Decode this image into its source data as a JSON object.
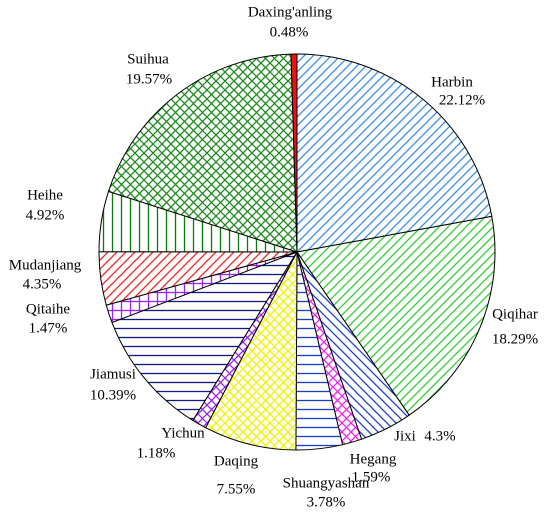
{
  "chart_data": {
    "type": "pie",
    "categories": [
      "Harbin",
      "Qiqihar",
      "Jixi",
      "Hegang",
      "Shuangyashan",
      "Daqing",
      "Yichun",
      "Jiamusi",
      "Qitaihe",
      "Mudanjiang",
      "Heihe",
      "Suihua",
      "Daxing'anling"
    ],
    "values": [
      22.12,
      18.29,
      4.3,
      1.59,
      3.78,
      7.55,
      1.18,
      10.39,
      1.47,
      4.35,
      4.92,
      19.57,
      0.48
    ],
    "value_labels": [
      "22.12%",
      "18.29%",
      "4.3%",
      "1.59%",
      "3.78%",
      "7.55%",
      "1.18%",
      "10.39%",
      "1.47%",
      "4.35%",
      "4.92%",
      "19.57%",
      "0.48%"
    ],
    "colors": [
      "#3a8ee6",
      "#33cc33",
      "#1a3fcc",
      "#ee22ee",
      "#1a3fcc",
      "#f2f200",
      "#9922ee",
      "#101a80",
      "#9922ee",
      "#ee2222",
      "#0a7a0a",
      "#1a8a1a",
      "#ee1111"
    ],
    "hatches": [
      "diagonal",
      "diagonal",
      "back-diagonal",
      "cross-diagonal",
      "horizontal",
      "cross-diagonal",
      "cross-diagonal",
      "horizontal",
      "grid",
      "diagonal",
      "vertical",
      "cross-diagonal",
      "solid"
    ]
  }
}
